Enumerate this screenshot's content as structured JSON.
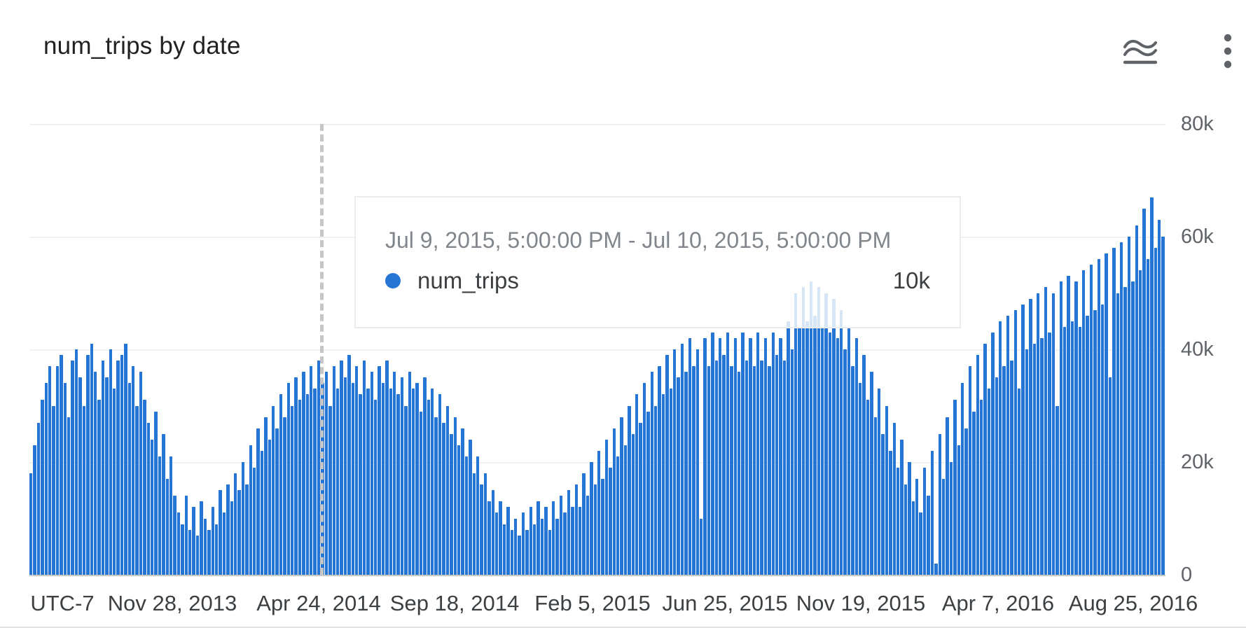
{
  "header": {
    "title": "num_trips by date"
  },
  "tooltip": {
    "date_range": "Jul 9, 2015, 5:00:00 PM - Jul 10, 2015, 5:00:00 PM",
    "series_label": "num_trips",
    "value": "10k"
  },
  "chart_data": {
    "type": "bar",
    "title": "num_trips by date",
    "series_name": "num_trips",
    "timezone_label": "UTC-7",
    "x_axis": {
      "ticks": [
        "UTC-7",
        "Nov 28, 2013",
        "Apr 24, 2014",
        "Sep 18, 2014",
        "Feb 5, 2015",
        "Jun 25, 2015",
        "Nov 19, 2015",
        "Apr 7, 2016",
        "Aug 25, 2016"
      ]
    },
    "y_axis": {
      "ticks": [
        "80k",
        "60k",
        "40k",
        "20k",
        "0"
      ],
      "min": 0,
      "max_k": 80
    },
    "values_unit": "thousands_of_trips",
    "values_k": [
      18,
      23,
      27,
      31,
      34,
      37,
      30,
      37,
      39,
      34,
      28,
      38,
      40,
      35,
      30,
      39,
      41,
      36,
      31,
      38,
      35,
      40,
      33,
      38,
      39,
      41,
      34,
      37,
      30,
      36,
      31,
      27,
      24,
      29,
      21,
      25,
      17,
      21,
      14,
      11,
      9,
      14,
      8,
      12,
      7,
      13,
      10,
      8,
      12,
      9,
      15,
      11,
      16,
      13,
      18,
      15,
      20,
      16,
      23,
      19,
      26,
      22,
      28,
      24,
      30,
      26,
      32,
      28,
      34,
      30,
      35,
      31,
      36,
      32,
      37,
      33,
      38,
      34,
      36,
      30,
      37,
      33,
      38,
      35,
      39,
      34,
      37,
      32,
      38,
      33,
      36,
      31,
      37,
      34,
      38,
      33,
      36,
      32,
      35,
      30,
      36,
      33,
      34,
      29,
      35,
      31,
      33,
      28,
      32,
      27,
      30,
      25,
      28,
      23,
      26,
      21,
      24,
      18,
      21,
      16,
      18,
      13,
      15,
      11,
      13,
      9,
      12,
      8,
      10,
      7,
      11,
      8,
      12,
      9,
      13,
      10,
      12,
      8,
      13,
      10,
      14,
      11,
      15,
      12,
      16,
      12,
      18,
      14,
      20,
      16,
      22,
      17,
      24,
      19,
      26,
      21,
      28,
      23,
      30,
      25,
      32,
      27,
      34,
      29,
      36,
      30,
      37,
      32,
      39,
      33,
      40,
      35,
      41,
      36,
      42,
      37,
      40,
      10,
      42,
      37,
      43,
      38,
      42,
      39,
      43,
      37,
      42,
      36,
      43,
      38,
      42,
      37,
      43,
      38,
      42,
      37,
      43,
      39,
      42,
      38,
      45,
      40,
      50,
      44,
      51,
      45,
      52,
      46,
      51,
      44,
      50,
      43,
      49,
      42,
      47,
      40,
      44,
      37,
      42,
      34,
      39,
      31,
      36,
      28,
      33,
      25,
      30,
      22,
      27,
      19,
      24,
      16,
      20,
      13,
      17,
      11,
      19,
      14,
      22,
      2,
      25,
      17,
      28,
      20,
      31,
      23,
      34,
      26,
      37,
      29,
      39,
      31,
      41,
      33,
      43,
      35,
      45,
      37,
      46,
      38,
      47,
      33,
      48,
      40,
      49,
      41,
      50,
      42,
      51,
      43,
      50,
      30,
      52,
      44,
      53,
      45,
      52,
      44,
      54,
      46,
      55,
      47,
      56,
      48,
      57,
      35,
      58,
      50,
      59,
      51,
      60,
      52,
      62,
      54,
      65,
      56,
      67,
      58,
      63,
      60
    ],
    "hovered_point": {
      "label": "Jul 9, 2015, 5:00:00 PM - Jul 10, 2015, 5:00:00 PM",
      "value_k": 10
    },
    "annotations": {
      "dashed_line_x_frac": 0.256
    },
    "layout_hints": {
      "grid": "horizontal",
      "y_axis_side": "right",
      "legend": "tooltip-only"
    },
    "colors": {
      "bar": "#2575d4",
      "grid": "#f1f1f1",
      "zero_line": "#c9c9c9",
      "axis_text": "#5f6368",
      "dashed_line": "#c6c6c6"
    }
  }
}
